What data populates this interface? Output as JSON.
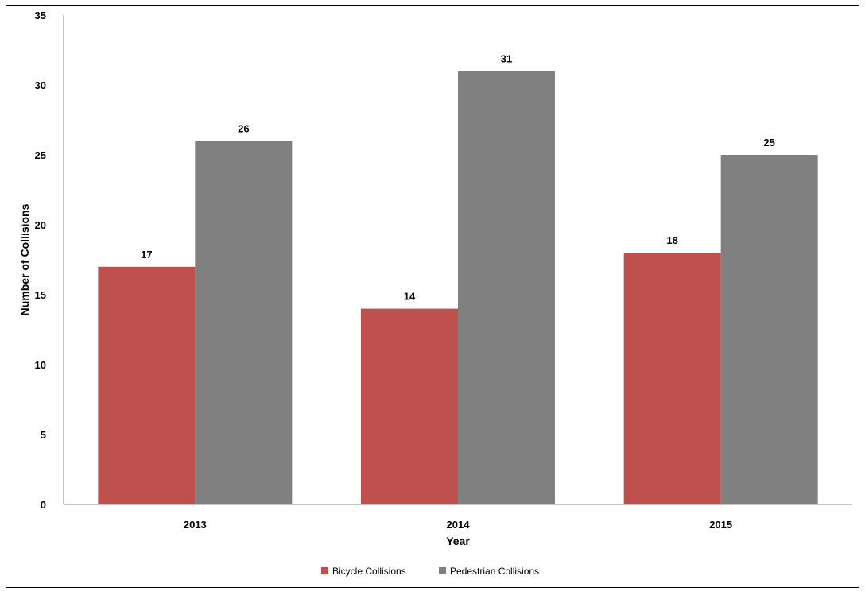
{
  "chart_data": {
    "type": "bar",
    "categories": [
      "2013",
      "2014",
      "2015"
    ],
    "series": [
      {
        "name": "Bicycle Collisions",
        "values": [
          17,
          14,
          18
        ],
        "color": "#c0504d"
      },
      {
        "name": "Pedestrian Collisions",
        "values": [
          26,
          31,
          25
        ],
        "color": "#808080"
      }
    ],
    "title": "",
    "xlabel": "Year",
    "ylabel": "Number of Collisions",
    "ylim": [
      0,
      35
    ],
    "yticks": [
      0,
      5,
      10,
      15,
      20,
      25,
      30,
      35
    ],
    "grid": false,
    "legend_position": "bottom"
  }
}
